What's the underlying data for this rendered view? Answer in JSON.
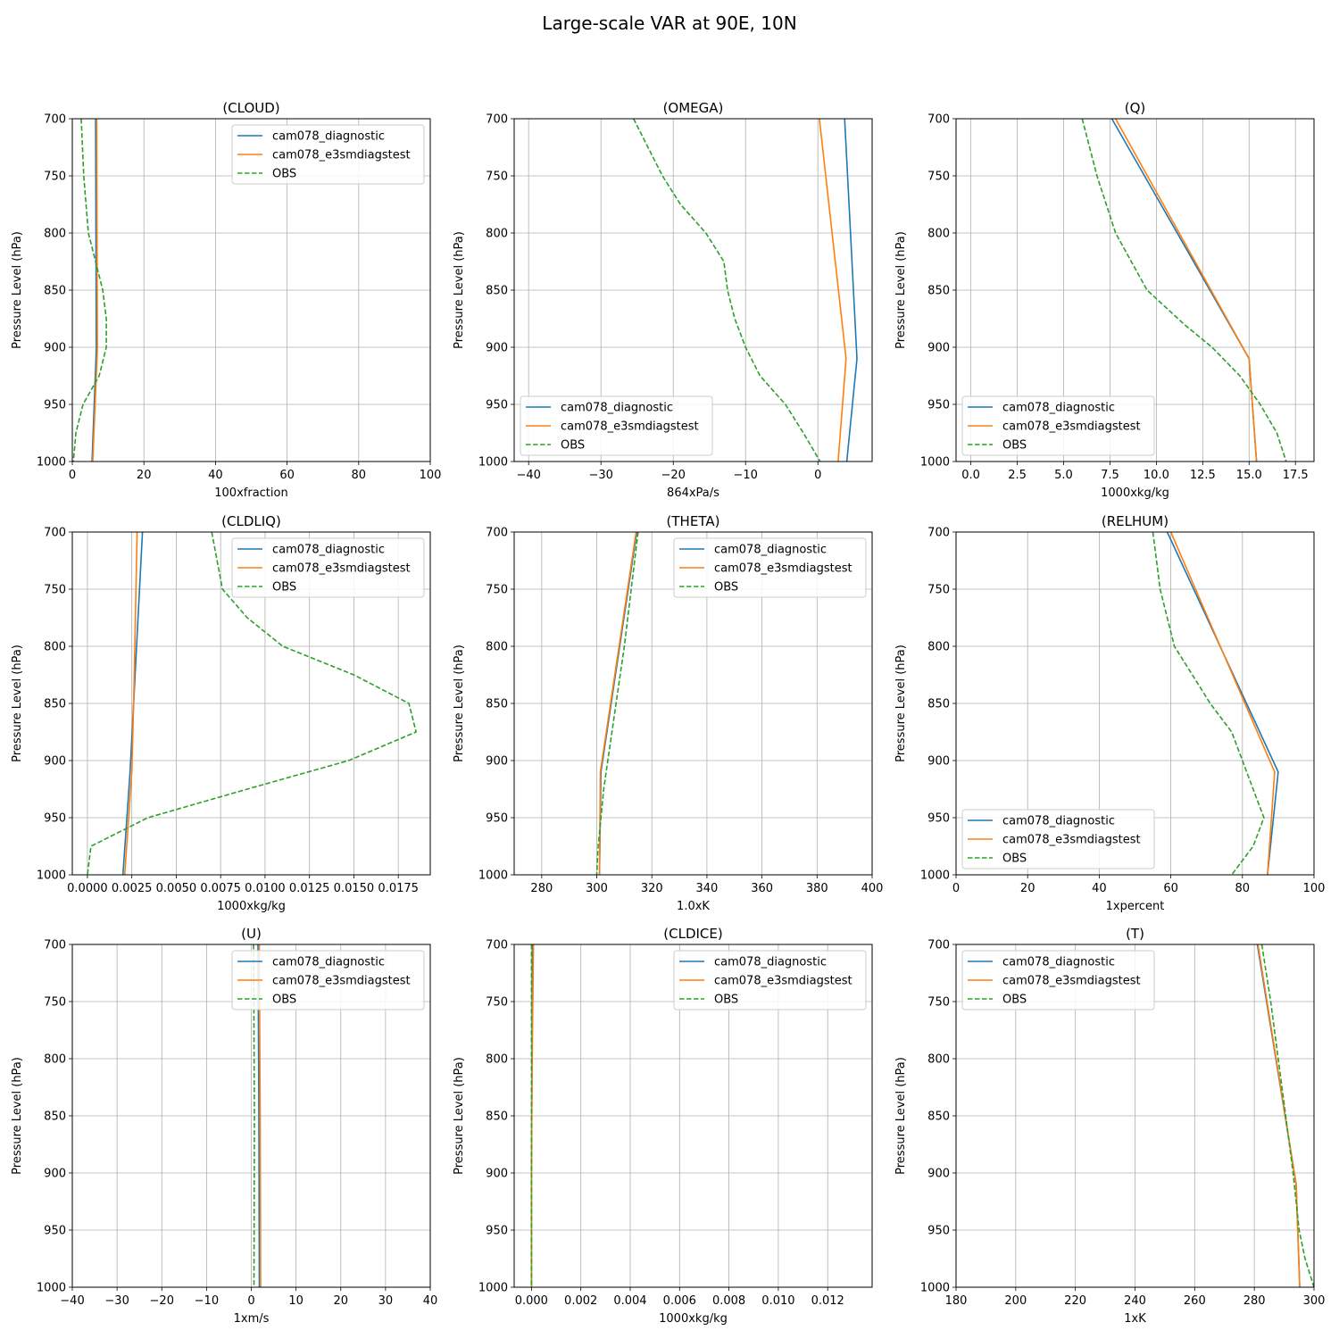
{
  "figure": {
    "title": "Large-scale VAR at 90E, 10N",
    "ylabel": "Pressure Level (hPa)"
  },
  "colors": {
    "cam078_diagnostic": "#1f77b4",
    "cam078_e3smdiagstest": "#ff7f0e",
    "OBS": "#2ca02c",
    "grid": "#b0b0b0"
  },
  "chart_data": [
    {
      "type": "line",
      "title": "(CLOUD)",
      "xlabel": "100xfraction",
      "ylabel": "Pressure Level (hPa)",
      "xlim": [
        0,
        100
      ],
      "ylim": [
        1000,
        700
      ],
      "xticks": [
        0,
        20,
        40,
        60,
        80,
        100
      ],
      "xtick_labels": [
        "0",
        "20",
        "40",
        "60",
        "80",
        "100"
      ],
      "yticks": [
        700,
        750,
        800,
        850,
        900,
        950,
        1000
      ],
      "grid": true,
      "legend": "top-right",
      "series": [
        {
          "name": "cam078_diagnostic",
          "style": "solid",
          "points": [
            [
              6.5,
              700
            ],
            [
              6.6,
              800
            ],
            [
              6.7,
              900
            ],
            [
              6.6,
              910
            ],
            [
              5.5,
              1000
            ]
          ]
        },
        {
          "name": "cam078_e3smdiagstest",
          "style": "solid",
          "points": [
            [
              6.8,
              700
            ],
            [
              6.9,
              800
            ],
            [
              7.0,
              900
            ],
            [
              6.9,
              910
            ],
            [
              5.7,
              1000
            ]
          ]
        },
        {
          "name": "OBS",
          "style": "dashed",
          "points": [
            [
              2.5,
              700
            ],
            [
              3.2,
              750
            ],
            [
              4.5,
              800
            ],
            [
              6.5,
              825
            ],
            [
              8.5,
              850
            ],
            [
              9.5,
              875
            ],
            [
              9.5,
              900
            ],
            [
              7.5,
              925
            ],
            [
              3,
              950
            ],
            [
              1,
              975
            ],
            [
              0.3,
              1000
            ]
          ]
        }
      ]
    },
    {
      "type": "line",
      "title": "(OMEGA)",
      "xlabel": "864xPa/s",
      "ylabel": "Pressure Level (hPa)",
      "xlim": [
        -42,
        7.5
      ],
      "ylim": [
        1000,
        700
      ],
      "xticks": [
        -40,
        -30,
        -20,
        -10,
        0
      ],
      "xtick_labels": [
        "−40",
        "−30",
        "−20",
        "−10",
        "0"
      ],
      "yticks": [
        700,
        750,
        800,
        850,
        900,
        950,
        1000
      ],
      "grid": true,
      "legend": "lower-left",
      "series": [
        {
          "name": "cam078_diagnostic",
          "style": "solid",
          "points": [
            [
              3.7,
              700
            ],
            [
              5.4,
              910
            ],
            [
              4.0,
              1000
            ]
          ]
        },
        {
          "name": "cam078_e3smdiagstest",
          "style": "solid",
          "points": [
            [
              0.2,
              700
            ],
            [
              3.9,
              910
            ],
            [
              2.8,
              1000
            ]
          ]
        },
        {
          "name": "OBS",
          "style": "dashed",
          "points": [
            [
              -25.5,
              700
            ],
            [
              -23.5,
              725
            ],
            [
              -21.5,
              750
            ],
            [
              -19,
              775
            ],
            [
              -15.5,
              800
            ],
            [
              -13,
              825
            ],
            [
              -12.5,
              850
            ],
            [
              -11.5,
              875
            ],
            [
              -10,
              900
            ],
            [
              -8,
              925
            ],
            [
              -4.5,
              950
            ],
            [
              -2,
              975
            ],
            [
              0.3,
              1000
            ]
          ]
        }
      ]
    },
    {
      "type": "line",
      "title": "(Q)",
      "xlabel": "1000xkg/kg",
      "ylabel": "Pressure Level (hPa)",
      "xlim": [
        -0.8,
        18.5
      ],
      "ylim": [
        1000,
        700
      ],
      "xticks": [
        0,
        2.5,
        5,
        7.5,
        10,
        12.5,
        15,
        17.5
      ],
      "xtick_labels": [
        "0.0",
        "2.5",
        "5.0",
        "7.5",
        "10.0",
        "12.5",
        "15.0",
        "17.5"
      ],
      "yticks": [
        700,
        750,
        800,
        850,
        900,
        950,
        1000
      ],
      "grid": true,
      "legend": "lower-left",
      "series": [
        {
          "name": "cam078_diagnostic",
          "style": "solid",
          "points": [
            [
              7.6,
              700
            ],
            [
              15.0,
              910
            ],
            [
              15.4,
              1000
            ]
          ]
        },
        {
          "name": "cam078_e3smdiagstest",
          "style": "solid",
          "points": [
            [
              7.8,
              700
            ],
            [
              15.0,
              910
            ],
            [
              15.4,
              1000
            ]
          ]
        },
        {
          "name": "OBS",
          "style": "dashed",
          "points": [
            [
              6.0,
              700
            ],
            [
              6.8,
              750
            ],
            [
              7.8,
              800
            ],
            [
              9.5,
              850
            ],
            [
              11.5,
              880
            ],
            [
              13.0,
              900
            ],
            [
              14.5,
              925
            ],
            [
              15.6,
              950
            ],
            [
              16.5,
              975
            ],
            [
              17.0,
              1000
            ]
          ]
        }
      ]
    },
    {
      "type": "line",
      "title": "(CLDLIQ)",
      "xlabel": "1000xkg/kg",
      "ylabel": "Pressure Level (hPa)",
      "xlim": [
        -0.00085,
        0.0193
      ],
      "ylim": [
        1000,
        700
      ],
      "xticks": [
        0,
        0.0025,
        0.005,
        0.0075,
        0.01,
        0.0125,
        0.015,
        0.0175
      ],
      "xtick_labels": [
        "0.0000",
        "0.0025",
        "0.0050",
        "0.0075",
        "0.0100",
        "0.0125",
        "0.0150",
        "0.0175"
      ],
      "yticks": [
        700,
        750,
        800,
        850,
        900,
        950,
        1000
      ],
      "grid": true,
      "legend": "top-right",
      "series": [
        {
          "name": "cam078_diagnostic",
          "style": "solid",
          "points": [
            [
              0.0031,
              700
            ],
            [
              0.0026,
              850
            ],
            [
              0.0024,
              910
            ],
            [
              0.002,
              1000
            ]
          ]
        },
        {
          "name": "cam078_e3smdiagstest",
          "style": "solid",
          "points": [
            [
              0.0028,
              700
            ],
            [
              0.0026,
              850
            ],
            [
              0.0025,
              910
            ],
            [
              0.0021,
              1000
            ]
          ]
        },
        {
          "name": "OBS",
          "style": "dashed",
          "points": [
            [
              0.007,
              700
            ],
            [
              0.0076,
              750
            ],
            [
              0.009,
              775
            ],
            [
              0.011,
              800
            ],
            [
              0.015,
              825
            ],
            [
              0.0181,
              850
            ],
            [
              0.0185,
              875
            ],
            [
              0.0147,
              900
            ],
            [
              0.009,
              925
            ],
            [
              0.0034,
              950
            ],
            [
              0.0002,
              975
            ],
            [
              0.0,
              1000
            ]
          ]
        }
      ]
    },
    {
      "type": "line",
      "title": "(THETA)",
      "xlabel": "1.0xK",
      "ylabel": "Pressure Level (hPa)",
      "xlim": [
        270,
        400
      ],
      "ylim": [
        1000,
        700
      ],
      "xticks": [
        280,
        300,
        320,
        340,
        360,
        380,
        400
      ],
      "xtick_labels": [
        "280",
        "300",
        "320",
        "340",
        "360",
        "380",
        "400"
      ],
      "yticks": [
        700,
        750,
        800,
        850,
        900,
        950,
        1000
      ],
      "grid": true,
      "legend": "top-right",
      "series": [
        {
          "name": "cam078_diagnostic",
          "style": "solid",
          "points": [
            [
              314.5,
              700
            ],
            [
              301.5,
              910
            ],
            [
              301.0,
              1000
            ]
          ]
        },
        {
          "name": "cam078_e3smdiagstest",
          "style": "solid",
          "points": [
            [
              314.3,
              700
            ],
            [
              301.3,
              910
            ],
            [
              301.0,
              1000
            ]
          ]
        },
        {
          "name": "OBS",
          "style": "dashed",
          "points": [
            [
              315.0,
              700
            ],
            [
              310.0,
              800
            ],
            [
              305.5,
              875
            ],
            [
              302.5,
              925
            ],
            [
              300.5,
              975
            ],
            [
              300.0,
              1000
            ]
          ]
        }
      ]
    },
    {
      "type": "line",
      "title": "(RELHUM)",
      "xlabel": "1xpercent",
      "ylabel": "Pressure Level (hPa)",
      "xlim": [
        0,
        100
      ],
      "ylim": [
        1000,
        700
      ],
      "xticks": [
        0,
        20,
        40,
        60,
        80,
        100
      ],
      "xtick_labels": [
        "0",
        "20",
        "40",
        "60",
        "80",
        "100"
      ],
      "yticks": [
        700,
        750,
        800,
        850,
        900,
        950,
        1000
      ],
      "grid": true,
      "legend": "lower-left",
      "series": [
        {
          "name": "cam078_diagnostic",
          "style": "solid",
          "points": [
            [
              59,
              700
            ],
            [
              90,
              910
            ],
            [
              87,
              1000
            ]
          ]
        },
        {
          "name": "cam078_e3smdiagstest",
          "style": "solid",
          "points": [
            [
              60,
              700
            ],
            [
              89,
              910
            ],
            [
              87,
              1000
            ]
          ]
        },
        {
          "name": "OBS",
          "style": "dashed",
          "points": [
            [
              55,
              700
            ],
            [
              57,
              750
            ],
            [
              59,
              775
            ],
            [
              61,
              800
            ],
            [
              66,
              825
            ],
            [
              71,
              850
            ],
            [
              77,
              875
            ],
            [
              80,
              900
            ],
            [
              83,
              925
            ],
            [
              86,
              950
            ],
            [
              83,
              975
            ],
            [
              77,
              1000
            ]
          ]
        }
      ]
    },
    {
      "type": "line",
      "title": "(U)",
      "xlabel": "1xm/s",
      "ylabel": "Pressure Level (hPa)",
      "xlim": [
        -40,
        40
      ],
      "ylim": [
        1000,
        700
      ],
      "xticks": [
        -40,
        -30,
        -20,
        -10,
        0,
        10,
        20,
        30,
        40
      ],
      "xtick_labels": [
        "−40",
        "−30",
        "−20",
        "−10",
        "0",
        "10",
        "20",
        "30",
        "40"
      ],
      "yticks": [
        700,
        750,
        800,
        850,
        900,
        950,
        1000
      ],
      "grid": true,
      "legend": "top-right",
      "series": [
        {
          "name": "cam078_diagnostic",
          "style": "solid",
          "points": [
            [
              1.5,
              700
            ],
            [
              1.7,
              850
            ],
            [
              1.8,
              1000
            ]
          ]
        },
        {
          "name": "cam078_e3smdiagstest",
          "style": "solid",
          "points": [
            [
              1.8,
              700
            ],
            [
              2.0,
              850
            ],
            [
              2.1,
              1000
            ]
          ]
        },
        {
          "name": "OBS",
          "style": "dashed",
          "points": [
            [
              0.5,
              700
            ],
            [
              0.7,
              850
            ],
            [
              0.6,
              1000
            ]
          ]
        }
      ]
    },
    {
      "type": "line",
      "title": "(CLDICE)",
      "xlabel": "1000xkg/kg",
      "ylabel": "Pressure Level (hPa)",
      "xlim": [
        -0.0007,
        0.0138
      ],
      "ylim": [
        1000,
        700
      ],
      "xticks": [
        0,
        0.002,
        0.004,
        0.006,
        0.008,
        0.01,
        0.012
      ],
      "xtick_labels": [
        "0.000",
        "0.002",
        "0.004",
        "0.006",
        "0.008",
        "0.010",
        "0.012"
      ],
      "yticks": [
        700,
        750,
        800,
        850,
        900,
        950,
        1000
      ],
      "grid": true,
      "legend": "top-right",
      "series": [
        {
          "name": "cam078_diagnostic",
          "style": "solid",
          "points": [
            [
              5e-05,
              700
            ],
            [
              2e-05,
              800
            ],
            [
              0.0,
              900
            ],
            [
              0.0,
              1000
            ]
          ]
        },
        {
          "name": "cam078_e3smdiagstest",
          "style": "solid",
          "points": [
            [
              8e-05,
              700
            ],
            [
              3e-05,
              800
            ],
            [
              0.0,
              900
            ],
            [
              0.0,
              1000
            ]
          ]
        },
        {
          "name": "OBS",
          "style": "dashed",
          "points": [
            [
              0.0,
              700
            ],
            [
              0.0,
              1000
            ]
          ]
        }
      ]
    },
    {
      "type": "line",
      "title": "(T)",
      "xlabel": "1xK",
      "ylabel": "Pressure Level (hPa)",
      "xlim": [
        180,
        300
      ],
      "ylim": [
        1000,
        700
      ],
      "xticks": [
        180,
        200,
        220,
        240,
        260,
        280,
        300
      ],
      "xtick_labels": [
        "180",
        "200",
        "220",
        "240",
        "260",
        "280",
        "300"
      ],
      "yticks": [
        700,
        750,
        800,
        850,
        900,
        950,
        1000
      ],
      "grid": true,
      "legend": "top-left",
      "series": [
        {
          "name": "cam078_diagnostic",
          "style": "solid",
          "points": [
            [
              281.0,
              700
            ],
            [
              294.0,
              910
            ],
            [
              295.2,
              1000
            ]
          ]
        },
        {
          "name": "cam078_e3smdiagstest",
          "style": "solid",
          "points": [
            [
              281.2,
              700
            ],
            [
              294.0,
              910
            ],
            [
              295.2,
              1000
            ]
          ]
        },
        {
          "name": "OBS",
          "style": "dashed",
          "points": [
            [
              282.5,
              700
            ],
            [
              285.5,
              750
            ],
            [
              288.0,
              800
            ],
            [
              290.5,
              850
            ],
            [
              293.0,
              900
            ],
            [
              295.0,
              950
            ],
            [
              297.0,
              975
            ],
            [
              300.0,
              1000
            ]
          ]
        }
      ]
    }
  ]
}
